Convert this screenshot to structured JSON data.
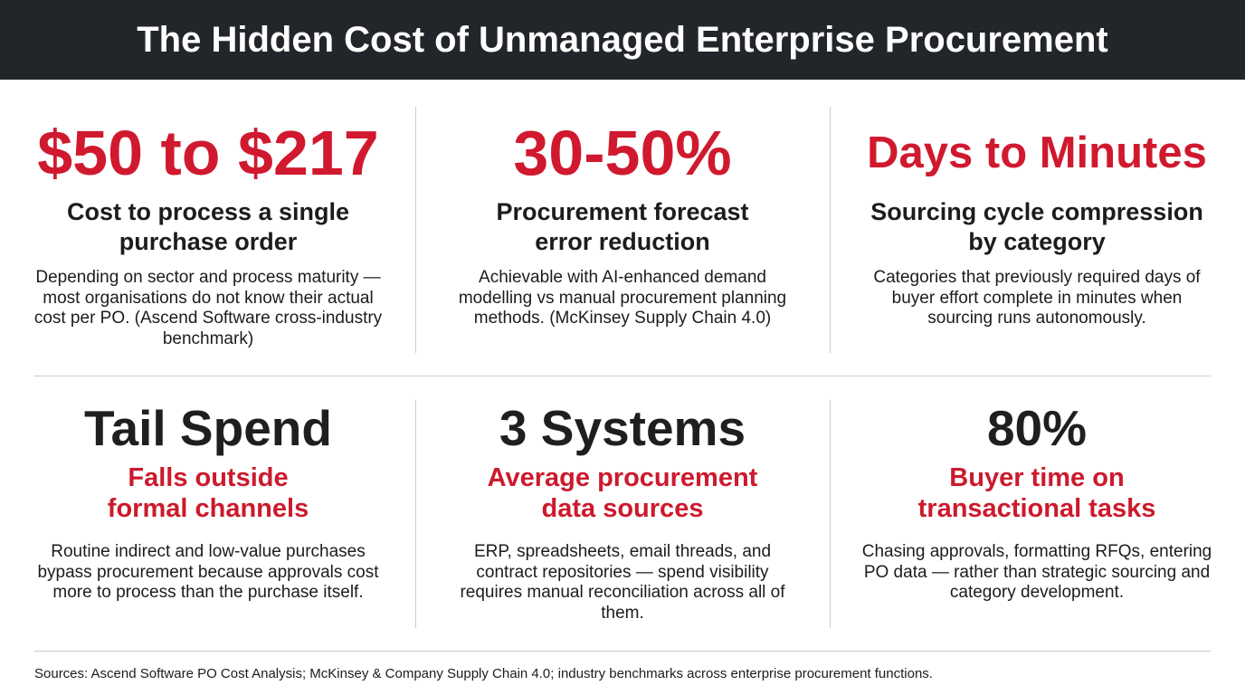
{
  "header": {
    "title": "The Hidden Cost of Unmanaged Enterprise Procurement"
  },
  "cards": [
    {
      "headline": "$50 to $217",
      "subtitle": [
        "Cost to process a single",
        "purchase order"
      ],
      "description": "Depending on sector and process maturity — most organisations do not know their actual cost per PO. (Ascend Software cross-industry benchmark)"
    },
    {
      "headline": "30-50%",
      "subtitle": [
        "Procurement forecast",
        "error reduction"
      ],
      "description": "Achievable with AI-enhanced demand modelling vs manual procurement planning methods. (McKinsey Supply Chain 4.0)"
    },
    {
      "headline": "Days to Minutes",
      "subtitle": [
        "Sourcing cycle compression",
        "by category"
      ],
      "description": "Categories that previously required days of buyer effort complete in minutes when sourcing runs autonomously."
    },
    {
      "headline": "Tail Spend",
      "subtitle": [
        "Falls outside",
        "formal channels"
      ],
      "description": "Routine indirect and low-value purchases bypass procurement because approvals cost more to process than the purchase itself."
    },
    {
      "headline": "3 Systems",
      "subtitle": [
        "Average procurement",
        "data sources"
      ],
      "description": "ERP, spreadsheets, email threads, and contract repositories — spend visibility requires manual reconciliation across all of them."
    },
    {
      "headline": "80%",
      "subtitle": [
        "Buyer time on",
        "transactional tasks"
      ],
      "description": "Chasing approvals, formatting RFQs, entering PO data — rather than strategic sourcing and category development."
    }
  ],
  "footer": {
    "sources": "Sources: Ascend Software PO Cost Analysis; McKinsey & Company Supply Chain 4.0; industry benchmarks across enterprise procurement functions."
  }
}
